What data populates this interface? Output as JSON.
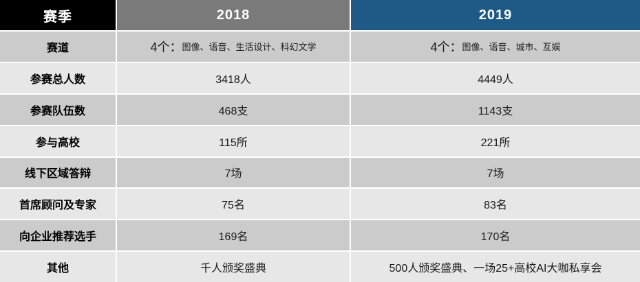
{
  "colors": {
    "header_label_bg": "#000000",
    "header_2018_bg": "#7a7a7a",
    "header_2019_bg": "#1e5a85",
    "row_dark_bg": "#cbcbcb",
    "row_light_bg": "#e7e7e7",
    "header_text": "#ffffff",
    "body_text": "#000000"
  },
  "table": {
    "header": {
      "col_label": "赛季",
      "col_2018": "2018",
      "col_2019": "2019"
    },
    "track_row": {
      "label": "赛道",
      "y2018": {
        "prefix": "4个：",
        "detail": "图像、语音、生活设计、科幻文学"
      },
      "y2019": {
        "prefix": "4个：",
        "detail": "图像、语音、城市、互娱"
      }
    },
    "rows": [
      {
        "label": "参赛总人数",
        "y2018": "3418人",
        "y2019": "4449人"
      },
      {
        "label": "参赛队伍数",
        "y2018": "468支",
        "y2019": "1143支"
      },
      {
        "label": "参与高校",
        "y2018": "115所",
        "y2019": "221所"
      },
      {
        "label": "线下区域答辩",
        "y2018": "7场",
        "y2019": "7场"
      },
      {
        "label": "首席顾问及专家",
        "y2018": "75名",
        "y2019": "83名"
      },
      {
        "label": "向企业推荐选手",
        "y2018": "169名",
        "y2019": "170名"
      },
      {
        "label": "其他",
        "y2018": "千人颁奖盛典",
        "y2019": "500人颁奖盛典、一场25+高校AI大咖私享会"
      }
    ]
  }
}
